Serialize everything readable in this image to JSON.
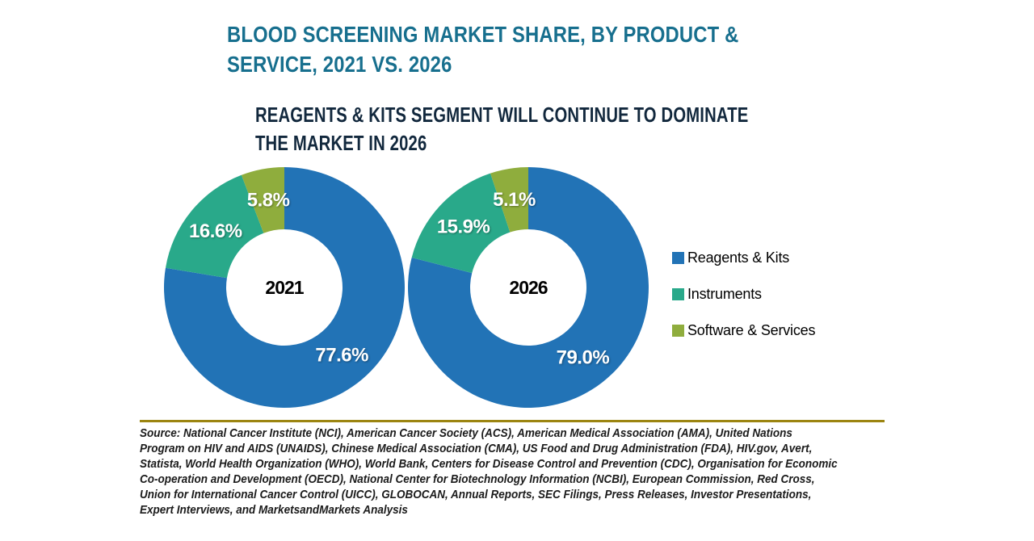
{
  "header": {
    "title_lines": [
      "BLOOD SCREENING MARKET SHARE, BY PRODUCT &",
      "SERVICE, 2021 VS. 2026"
    ],
    "title_color": "#176f8e",
    "subtitle_lines": [
      "REAGENTS & KITS SEGMENT WILL CONTINUE TO DOMINATE",
      "THE MARKET IN 2026"
    ],
    "subtitle_color": "#12283d"
  },
  "chart_data": {
    "type": "pie",
    "variant": "donut",
    "title": "BLOOD SCREENING MARKET SHARE, BY PRODUCT & SERVICE, 2021 VS. 2026",
    "subtitle": "REAGENTS & KITS SEGMENT WILL CONTINUE TO DOMINATE THE MARKET IN 2026",
    "categories": [
      "Reagents & Kits",
      "Instruments",
      "Software & Services"
    ],
    "colors": [
      "#2273b6",
      "#29a98a",
      "#8fad3d"
    ],
    "label_color": "#ffffff",
    "legend_position": "right",
    "charts": [
      {
        "center_label": "2021",
        "values": [
          77.6,
          16.6,
          5.8
        ],
        "labels": [
          "77.6%",
          "16.6%",
          "5.8%"
        ]
      },
      {
        "center_label": "2026",
        "values": [
          79.0,
          15.9,
          5.1
        ],
        "labels": [
          "79.0%",
          "15.9%",
          "5.1%"
        ]
      }
    ]
  },
  "footer": {
    "rule_color": "#9c8511",
    "source_lines": [
      "Source: National Cancer Institute (NCI), American Cancer Society (ACS), American Medical Association (AMA), United Nations",
      "Program on HIV and AIDS (UNAIDS), Chinese Medical Association (CMA), US Food and Drug Administration (FDA), HIV.gov, Avert,",
      "Statista, World Health Organization (WHO), World Bank, Centers for Disease Control and Prevention (CDC), Organisation for Economic",
      "Co-operation and Development (OECD), National Center for Biotechnology Information (NCBI), European Commission, Red Cross,",
      "Union for International Cancer Control (UICC), GLOBOCAN, Annual Reports, SEC Filings, Press Releases, Investor Presentations,",
      "Expert Interviews, and MarketsandMarkets Analysis"
    ]
  }
}
